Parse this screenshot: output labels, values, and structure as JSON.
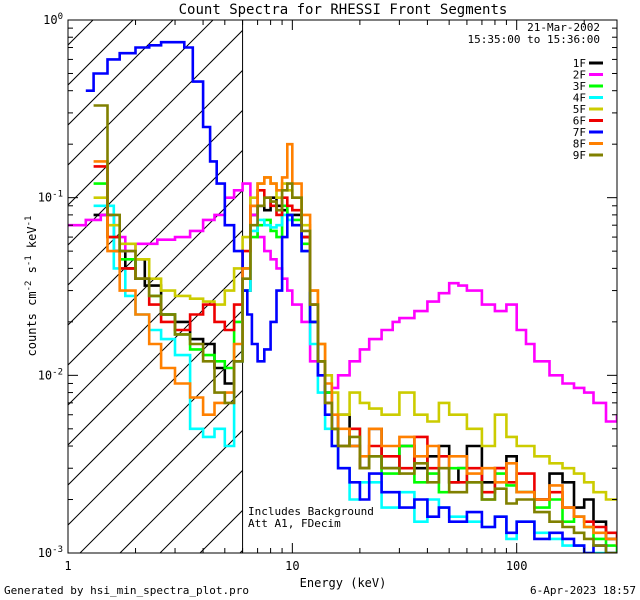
{
  "chart_data": {
    "type": "line",
    "title": "Count Spectra for RHESSI Front Segments",
    "xlabel": "Energy (keV)",
    "ylabel_parts": [
      "counts cm",
      "-2",
      " s",
      "-1",
      " keV",
      "-1"
    ],
    "x_scale": "log",
    "y_scale": "log",
    "xlim": [
      1,
      280
    ],
    "ylim": [
      0.001,
      1
    ],
    "x_ticks": [
      {
        "v": 1,
        "label": "1"
      },
      {
        "v": 10,
        "label": "10"
      },
      {
        "v": 100,
        "label": "100"
      }
    ],
    "y_ticks": [
      {
        "v": 1,
        "label": "10",
        "exp": "0"
      },
      {
        "v": 0.1,
        "label": "10",
        "exp": "-1"
      },
      {
        "v": 0.01,
        "label": "10",
        "exp": "-2"
      },
      {
        "v": 0.001,
        "label": "10",
        "exp": "-3"
      }
    ],
    "date": "21-Mar-2002",
    "time_range": "15:35:00 to 15:36:00",
    "annotations": [
      "Includes Background",
      "Att A1, FDecim"
    ],
    "shaded_region": {
      "x_start": 1,
      "x_end": 6,
      "style": "diagonal hatch"
    },
    "legend_position": "top-right",
    "footer_left": "Generated by hsi_min_spectra_plot.pro",
    "footer_right": "6-Apr-2023 18:57",
    "series": [
      {
        "name": "1F",
        "color": "#000000",
        "x": [
          1.3,
          1.6,
          1.8,
          2.0,
          2.2,
          2.6,
          3.0,
          3.5,
          4.0,
          4.5,
          5.0,
          5.5,
          6.0,
          6.5,
          7.0,
          7.5,
          8.0,
          8.5,
          9.0,
          9.5,
          10,
          11,
          12,
          13,
          14,
          15,
          16,
          18,
          20,
          22,
          25,
          30,
          35,
          40,
          45,
          50,
          55,
          60,
          70,
          80,
          90,
          100,
          120,
          140,
          160,
          180,
          200,
          220,
          250,
          280
        ],
        "y": [
          0.08,
          0.05,
          0.04,
          0.045,
          0.032,
          0.022,
          0.02,
          0.016,
          0.015,
          0.011,
          0.009,
          0.012,
          0.03,
          0.08,
          0.09,
          0.085,
          0.1,
          0.09,
          0.085,
          0.08,
          0.08,
          0.06,
          0.02,
          0.012,
          0.008,
          0.005,
          0.006,
          0.004,
          0.003,
          0.005,
          0.003,
          0.004,
          0.003,
          0.0035,
          0.004,
          0.0025,
          0.003,
          0.004,
          0.0025,
          0.003,
          0.0035,
          0.0022,
          0.002,
          0.0028,
          0.0025,
          0.0018,
          0.002,
          0.0015,
          0.0012,
          0.0012
        ]
      },
      {
        "name": "2F",
        "color": "#ff00ff",
        "x": [
          1.0,
          1.2,
          1.4,
          1.6,
          1.8,
          2.0,
          2.5,
          3.0,
          3.5,
          4.0,
          4.5,
          5.0,
          5.5,
          6.0,
          6.5,
          7.0,
          7.5,
          8.0,
          8.5,
          9.0,
          9.5,
          10,
          11,
          12,
          13,
          14,
          15,
          16,
          18,
          20,
          22,
          25,
          28,
          30,
          35,
          40,
          45,
          50,
          55,
          60,
          70,
          80,
          90,
          100,
          110,
          120,
          140,
          160,
          180,
          200,
          220,
          250,
          280
        ],
        "y": [
          0.07,
          0.075,
          0.08,
          0.06,
          0.05,
          0.055,
          0.058,
          0.06,
          0.065,
          0.075,
          0.08,
          0.1,
          0.11,
          0.12,
          0.08,
          0.06,
          0.05,
          0.045,
          0.04,
          0.035,
          0.03,
          0.025,
          0.02,
          0.012,
          0.01,
          0.008,
          0.0085,
          0.01,
          0.012,
          0.014,
          0.016,
          0.018,
          0.02,
          0.021,
          0.023,
          0.026,
          0.029,
          0.033,
          0.032,
          0.03,
          0.025,
          0.023,
          0.025,
          0.018,
          0.015,
          0.012,
          0.01,
          0.009,
          0.0085,
          0.008,
          0.007,
          0.0055,
          0.006
        ]
      },
      {
        "name": "3F",
        "color": "#00ff00",
        "x": [
          1.3,
          1.5,
          1.7,
          2.0,
          2.3,
          2.6,
          3.0,
          3.5,
          4.0,
          4.5,
          5.0,
          5.5,
          6.0,
          6.5,
          7.0,
          7.5,
          8.0,
          8.5,
          9.0,
          9.5,
          10,
          11,
          12,
          13,
          14,
          15,
          16,
          18,
          20,
          22,
          25,
          30,
          35,
          40,
          45,
          50,
          60,
          70,
          80,
          90,
          100,
          120,
          140,
          160,
          180,
          200,
          220,
          250,
          280
        ],
        "y": [
          0.12,
          0.06,
          0.045,
          0.035,
          0.028,
          0.022,
          0.017,
          0.014,
          0.013,
          0.012,
          0.011,
          0.02,
          0.04,
          0.06,
          0.07,
          0.075,
          0.065,
          0.06,
          0.09,
          0.08,
          0.075,
          0.055,
          0.02,
          0.012,
          0.008,
          0.005,
          0.004,
          0.005,
          0.003,
          0.0035,
          0.0028,
          0.004,
          0.0025,
          0.0028,
          0.0022,
          0.003,
          0.0025,
          0.002,
          0.0028,
          0.0024,
          0.0022,
          0.0018,
          0.002,
          0.0015,
          0.0016,
          0.0014,
          0.0012,
          0.0011,
          0.001
        ]
      },
      {
        "name": "4F",
        "color": "#00ffff",
        "x": [
          1.3,
          1.6,
          1.8,
          2.0,
          2.3,
          2.6,
          3.0,
          3.5,
          4.0,
          4.5,
          5.0,
          5.5,
          6.0,
          6.5,
          7.0,
          7.5,
          8.0,
          8.5,
          9.0,
          9.5,
          10,
          11,
          12,
          13,
          14,
          15,
          16,
          18,
          20,
          25,
          30,
          35,
          40,
          45,
          50,
          60,
          70,
          80,
          90,
          100,
          120,
          140,
          160,
          200,
          250,
          280
        ],
        "y": [
          0.09,
          0.04,
          0.028,
          0.022,
          0.018,
          0.016,
          0.013,
          0.005,
          0.0045,
          0.005,
          0.004,
          0.012,
          0.03,
          0.065,
          0.075,
          0.07,
          0.068,
          0.07,
          0.08,
          0.075,
          0.07,
          0.05,
          0.015,
          0.008,
          0.005,
          0.004,
          0.003,
          0.002,
          0.0025,
          0.0018,
          0.0022,
          0.0015,
          0.002,
          0.0018,
          0.0016,
          0.0015,
          0.0014,
          0.0016,
          0.0012,
          0.0015,
          0.0013,
          0.0012,
          0.0011,
          0.001,
          0.001,
          0.001
        ]
      },
      {
        "name": "5F",
        "color": "#cccc00",
        "x": [
          1.3,
          1.5,
          1.7,
          2.0,
          2.3,
          2.6,
          3.0,
          3.5,
          4.0,
          4.5,
          5.0,
          5.5,
          6.0,
          6.5,
          7.0,
          7.5,
          8.0,
          8.5,
          9.0,
          9.5,
          10,
          11,
          12,
          13,
          14,
          15,
          16,
          18,
          20,
          22,
          25,
          30,
          35,
          40,
          45,
          50,
          60,
          70,
          80,
          90,
          100,
          120,
          140,
          160,
          180,
          200,
          220,
          250,
          280
        ],
        "y": [
          0.1,
          0.07,
          0.055,
          0.045,
          0.035,
          0.03,
          0.028,
          0.027,
          0.026,
          0.025,
          0.03,
          0.04,
          0.06,
          0.1,
          0.12,
          0.13,
          0.12,
          0.1,
          0.12,
          0.11,
          0.1,
          0.07,
          0.03,
          0.015,
          0.01,
          0.008,
          0.006,
          0.008,
          0.007,
          0.0065,
          0.006,
          0.008,
          0.006,
          0.0055,
          0.007,
          0.006,
          0.005,
          0.004,
          0.006,
          0.0045,
          0.004,
          0.0035,
          0.0032,
          0.003,
          0.0028,
          0.0025,
          0.0022,
          0.002,
          0.002
        ]
      },
      {
        "name": "6F",
        "color": "#ee0000",
        "x": [
          1.3,
          1.5,
          1.7,
          2.0,
          2.3,
          2.6,
          3.0,
          3.5,
          4.0,
          4.5,
          5.0,
          5.5,
          6.0,
          6.5,
          7.0,
          7.5,
          8.0,
          8.5,
          9.0,
          9.5,
          10,
          11,
          12,
          13,
          14,
          15,
          16,
          18,
          20,
          22,
          25,
          30,
          35,
          40,
          45,
          50,
          60,
          70,
          80,
          90,
          100,
          120,
          140,
          160,
          180,
          200,
          220,
          250,
          280
        ],
        "y": [
          0.15,
          0.06,
          0.04,
          0.035,
          0.025,
          0.02,
          0.018,
          0.022,
          0.025,
          0.02,
          0.018,
          0.025,
          0.05,
          0.09,
          0.11,
          0.1,
          0.09,
          0.08,
          0.1,
          0.09,
          0.085,
          0.06,
          0.025,
          0.012,
          0.007,
          0.005,
          0.004,
          0.005,
          0.003,
          0.004,
          0.0035,
          0.003,
          0.0045,
          0.003,
          0.0035,
          0.0025,
          0.003,
          0.0022,
          0.003,
          0.0025,
          0.0028,
          0.002,
          0.0022,
          0.0018,
          0.0016,
          0.0015,
          0.0014,
          0.0013,
          0.0012
        ]
      },
      {
        "name": "7F",
        "color": "#0000ff",
        "x": [
          1.2,
          1.3,
          1.5,
          1.7,
          2.0,
          2.3,
          2.6,
          3.0,
          3.3,
          3.6,
          4.0,
          4.3,
          4.6,
          5.0,
          5.5,
          6.0,
          6.3,
          6.6,
          7.0,
          7.5,
          8.0,
          8.5,
          9.0,
          9.5,
          10,
          11,
          12,
          13,
          14,
          15,
          16,
          18,
          20,
          22,
          25,
          30,
          35,
          40,
          45,
          50,
          60,
          70,
          80,
          90,
          100,
          120,
          140,
          160,
          180,
          200,
          220,
          250,
          280
        ],
        "y": [
          0.4,
          0.5,
          0.6,
          0.65,
          0.7,
          0.72,
          0.75,
          0.75,
          0.7,
          0.45,
          0.25,
          0.16,
          0.12,
          0.07,
          0.05,
          0.03,
          0.022,
          0.015,
          0.012,
          0.014,
          0.02,
          0.03,
          0.06,
          0.08,
          0.07,
          0.05,
          0.02,
          0.01,
          0.006,
          0.004,
          0.003,
          0.0025,
          0.002,
          0.0028,
          0.0022,
          0.0018,
          0.002,
          0.0016,
          0.0018,
          0.0015,
          0.0017,
          0.0014,
          0.0016,
          0.0013,
          0.0015,
          0.0012,
          0.0013,
          0.0012,
          0.0011,
          0.001,
          0.0011,
          0.001,
          0.001
        ]
      },
      {
        "name": "8F",
        "color": "#ff8000",
        "x": [
          1.3,
          1.5,
          1.7,
          2.0,
          2.3,
          2.6,
          3.0,
          3.5,
          4.0,
          4.5,
          5.0,
          5.5,
          6.0,
          6.5,
          7.0,
          7.5,
          8.0,
          8.5,
          9.0,
          9.5,
          10,
          11,
          12,
          13,
          14,
          15,
          16,
          18,
          20,
          22,
          25,
          30,
          35,
          40,
          45,
          50,
          60,
          70,
          80,
          90,
          100,
          120,
          140,
          160,
          180,
          200,
          220,
          250,
          280
        ],
        "y": [
          0.16,
          0.05,
          0.03,
          0.022,
          0.015,
          0.011,
          0.009,
          0.0075,
          0.006,
          0.007,
          0.008,
          0.015,
          0.04,
          0.09,
          0.12,
          0.13,
          0.12,
          0.11,
          0.13,
          0.2,
          0.12,
          0.08,
          0.03,
          0.015,
          0.009,
          0.006,
          0.005,
          0.004,
          0.0035,
          0.005,
          0.004,
          0.0045,
          0.0035,
          0.004,
          0.003,
          0.0035,
          0.0028,
          0.003,
          0.0025,
          0.0032,
          0.0022,
          0.002,
          0.0024,
          0.0018,
          0.0016,
          0.0014,
          0.0013,
          0.0012,
          0.0011
        ]
      },
      {
        "name": "9F",
        "color": "#808000",
        "x": [
          1.3,
          1.5,
          1.7,
          2.0,
          2.3,
          2.6,
          3.0,
          3.5,
          4.0,
          4.5,
          5.0,
          5.5,
          6.0,
          6.5,
          7.0,
          7.5,
          8.0,
          8.5,
          9.0,
          9.5,
          10,
          11,
          12,
          13,
          14,
          15,
          16,
          18,
          20,
          22,
          25,
          30,
          35,
          40,
          45,
          50,
          60,
          70,
          80,
          90,
          100,
          120,
          140,
          160,
          180,
          200,
          220,
          250,
          280
        ],
        "y": [
          0.33,
          0.08,
          0.05,
          0.035,
          0.028,
          0.022,
          0.017,
          0.015,
          0.012,
          0.008,
          0.007,
          0.012,
          0.035,
          0.07,
          0.09,
          0.1,
          0.095,
          0.085,
          0.11,
          0.12,
          0.1,
          0.065,
          0.025,
          0.012,
          0.007,
          0.005,
          0.004,
          0.0045,
          0.003,
          0.0035,
          0.003,
          0.0028,
          0.0032,
          0.0025,
          0.003,
          0.0022,
          0.0025,
          0.002,
          0.0023,
          0.0019,
          0.002,
          0.0017,
          0.0015,
          0.0014,
          0.0013,
          0.0012,
          0.0011,
          0.001,
          0.001
        ]
      }
    ]
  }
}
